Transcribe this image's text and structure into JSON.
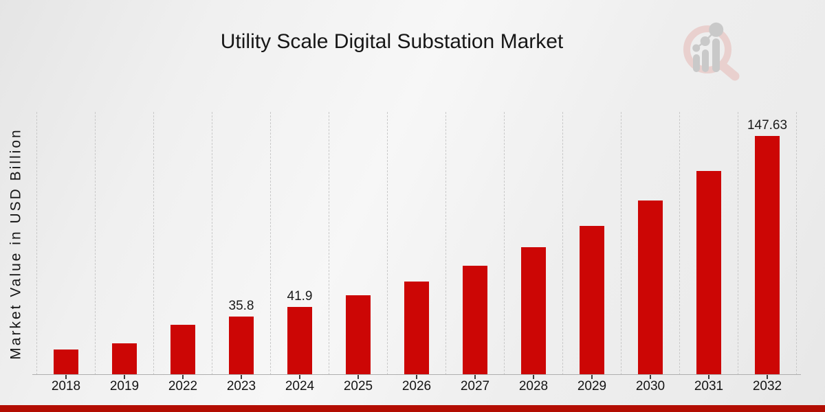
{
  "chart_data": {
    "type": "bar",
    "title": "Utility Scale Digital Substation Market",
    "ylabel": "Market Value in USD Billion",
    "xlabel": "",
    "categories": [
      "2018",
      "2019",
      "2022",
      "2023",
      "2024",
      "2025",
      "2026",
      "2027",
      "2028",
      "2029",
      "2030",
      "2031",
      "2032"
    ],
    "values": [
      15.2,
      19.0,
      30.6,
      35.8,
      41.9,
      49.0,
      57.4,
      67.2,
      78.6,
      92.0,
      107.7,
      126.1,
      147.63
    ],
    "value_labels": [
      "",
      "",
      "",
      "35.8",
      "41.9",
      "",
      "",
      "",
      "",
      "",
      "",
      "",
      "147.63"
    ],
    "ylim": [
      0,
      163
    ],
    "grid": "vertical-dashed",
    "legend": "none",
    "colors": {
      "bar": "#cc0605",
      "ribbon": "#b30d02",
      "text": "#1a1a1a",
      "gridline": "#c9c9c9",
      "axis": "#aeaeae"
    }
  },
  "branding": {
    "logo_icon": "magnifier-bar-chart-watermark"
  }
}
